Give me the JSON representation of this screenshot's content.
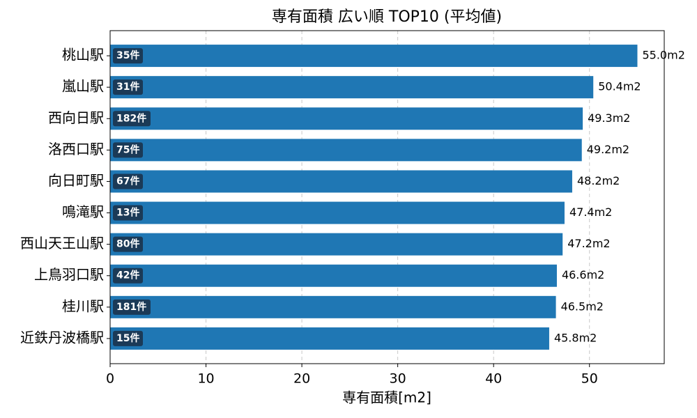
{
  "chart_data": {
    "type": "barh",
    "title": "専有面積 広い順 TOP10 (平均値)",
    "x_label": "専有面積[m2]",
    "categories": [
      "桃山駅",
      "嵐山駅",
      "西向日駅",
      "洛西口駅",
      "向日町駅",
      "鳴滝駅",
      "西山天王山駅",
      "上鳥羽口駅",
      "桂川駅",
      "近鉄丹波橋駅"
    ],
    "values": [
      55.0,
      50.4,
      49.3,
      49.2,
      48.2,
      47.4,
      47.2,
      46.6,
      46.5,
      45.8
    ],
    "value_labels": [
      "55.0m2",
      "50.4m2",
      "49.3m2",
      "49.2m2",
      "48.2m2",
      "47.4m2",
      "47.2m2",
      "46.6m2",
      "46.5m2",
      "45.8m2"
    ],
    "count_labels": [
      "35件",
      "31件",
      "182件",
      "75件",
      "67件",
      "13件",
      "80件",
      "42件",
      "181件",
      "15件"
    ],
    "color": "#1f77b4",
    "badge_color": "#1b3a57",
    "xlim": [
      0,
      57.8
    ],
    "xticks": [
      0,
      10,
      20,
      30,
      40,
      50
    ],
    "grid": true
  }
}
